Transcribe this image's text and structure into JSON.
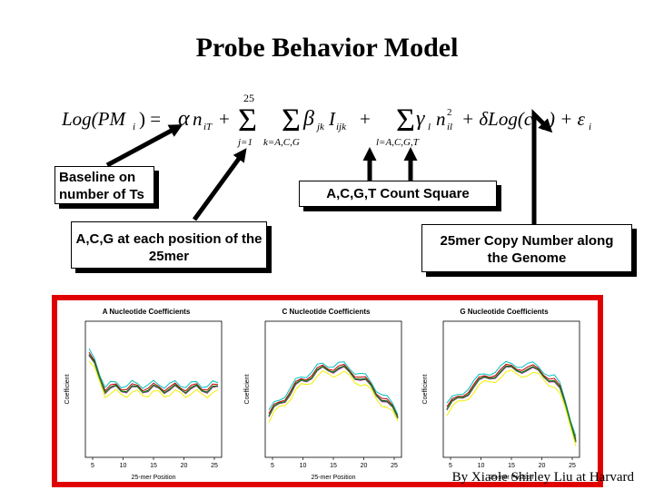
{
  "title": "Probe Behavior Model",
  "equation": {
    "lhs": "Log(PM",
    "sub_i": "i",
    "rhs_close": ") = ",
    "alpha": "α",
    "n": "n",
    "sub_iT": "iT",
    "plus": "+",
    "upper25": "25",
    "j1": "j=1",
    "kACG": "k=A,C,G",
    "beta": "β",
    "jk": "jk",
    "I": "I",
    "ijk": "ijk",
    "lACGT": "l=A,C,G,T",
    "gamma": "γ",
    "l": "l",
    "nil": "il",
    "sq": "2",
    "delta_term": "+ δLog(c",
    "close": ") + ε"
  },
  "boxes": {
    "baseline": "Baseline on number of Ts",
    "acg": "A,C,G at each position of the 25mer",
    "acgt": "A,C,G,T Count Square",
    "copy": "25mer Copy Number along the Genome"
  },
  "panels": [
    {
      "title": "A Nucleotide Coefficients",
      "xlabel": "25-mer Position",
      "ylabel": "Coefficient"
    },
    {
      "title": "C Nucleotide Coefficients",
      "xlabel": "25-mer Position",
      "ylabel": "Coefficient"
    },
    {
      "title": "G Nucleotide Coefficients",
      "xlabel": "25-mer Position",
      "ylabel": "Coefficient"
    }
  ],
  "x_ticks": [
    "5",
    "10",
    "15",
    "20",
    "25"
  ],
  "footer": "By Xiaole Shirley Liu at Harvard",
  "colors": {
    "frame": "#e00000",
    "series": [
      "#00c0c0",
      "#c00000",
      "#000000",
      "#2030d0",
      "#c000c0",
      "#00a000",
      "#f0f000"
    ]
  }
}
